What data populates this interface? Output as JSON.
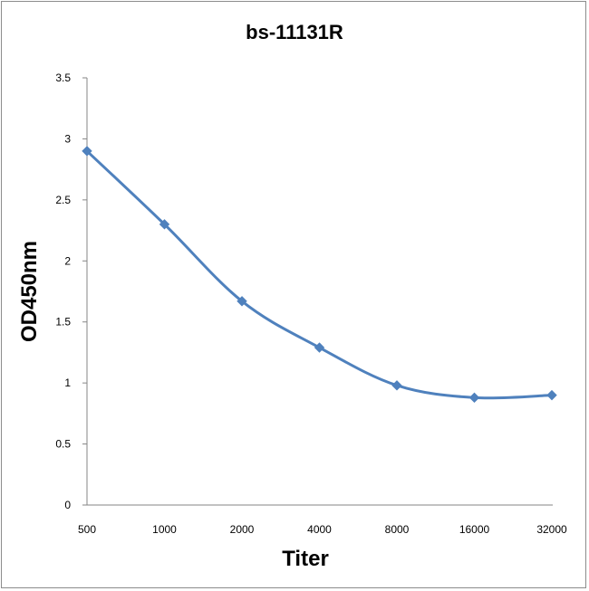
{
  "chart_data": {
    "type": "line",
    "title": "bs-11131R",
    "xlabel": "Titer",
    "ylabel": "OD450nm",
    "categories": [
      "500",
      "1000",
      "2000",
      "4000",
      "8000",
      "16000",
      "32000"
    ],
    "series": [
      {
        "values": [
          2.9,
          2.3,
          1.67,
          1.29,
          0.98,
          0.88,
          0.9
        ]
      }
    ],
    "ylim": [
      0,
      3.5
    ],
    "yticks": [
      "0",
      "0.5",
      "1",
      "1.5",
      "2",
      "2.5",
      "3",
      "3.5"
    ],
    "grid": false,
    "legend": "none",
    "color": "#4f81bd"
  }
}
